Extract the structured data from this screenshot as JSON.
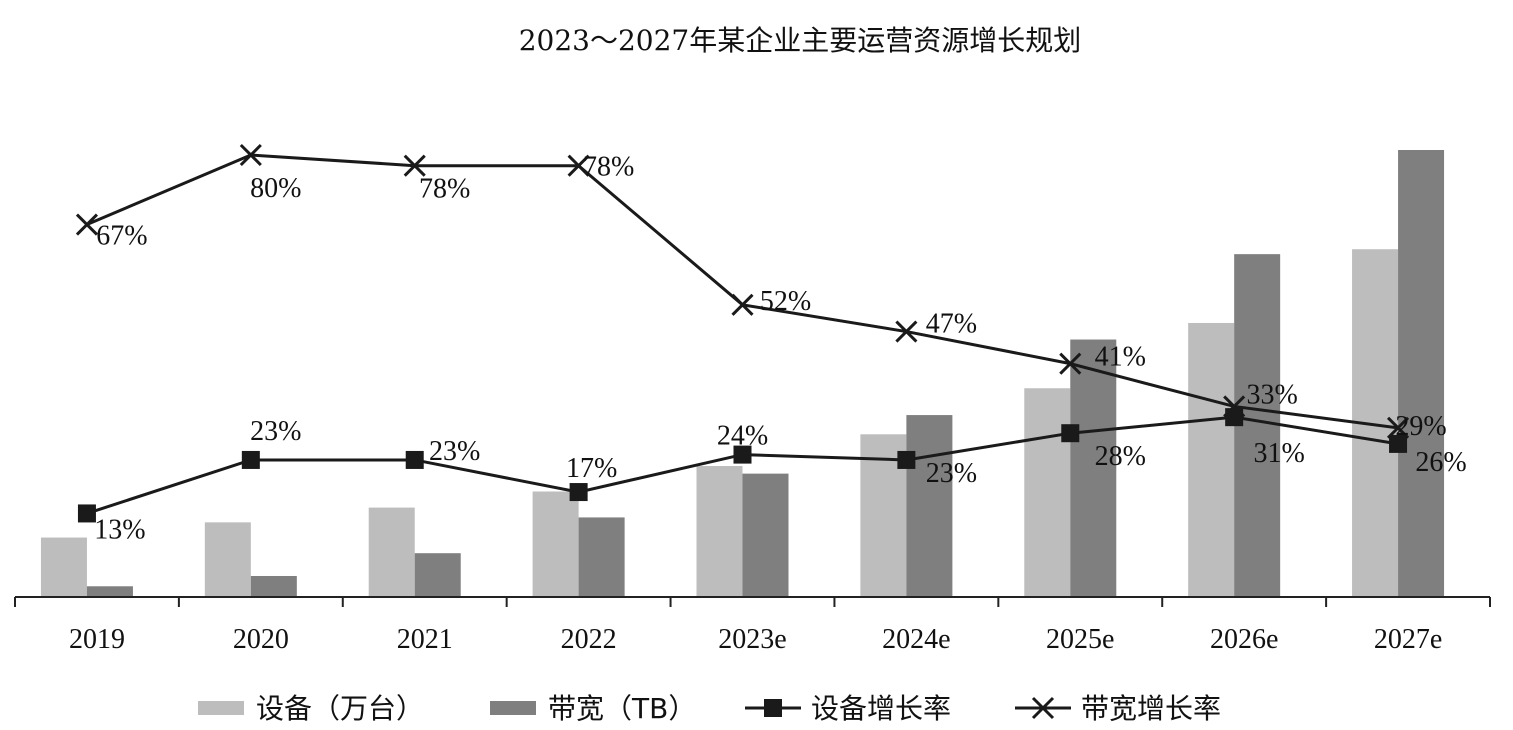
{
  "chart_data": {
    "type": "bar",
    "title": "2023～2027年某企业主要运营资源增长规划",
    "categories": [
      "2019",
      "2020",
      "2021",
      "2022",
      "2023e",
      "2024e",
      "2025e",
      "2026e",
      "2027e"
    ],
    "bar_ylim": [
      0,
      100
    ],
    "line_ylim": [
      0,
      100
    ],
    "series": [
      {
        "name": "设备（万台）",
        "kind": "bar",
        "color": "#bdbdbd",
        "values": [
          13.3,
          16.7,
          20.0,
          23.6,
          29.3,
          36.4,
          46.7,
          61.3,
          77.8
        ]
      },
      {
        "name": "带宽（TB）",
        "kind": "bar",
        "color": "#7f7f7f",
        "values": [
          2.4,
          4.7,
          9.8,
          17.8,
          27.6,
          40.7,
          57.6,
          76.7,
          100.0
        ]
      },
      {
        "name": "设备增长率",
        "kind": "line",
        "marker": "square",
        "color": "#1a1a1a",
        "values": [
          13,
          23,
          23,
          17,
          24,
          23,
          28,
          31,
          26
        ],
        "labels": [
          "13%",
          "23%",
          "23%",
          "17%",
          "24%",
          "23%",
          "28%",
          "31%",
          "26%"
        ]
      },
      {
        "name": "带宽增长率",
        "kind": "line",
        "marker": "x",
        "color": "#1a1a1a",
        "values": [
          67,
          80,
          78,
          78,
          52,
          47,
          41,
          33,
          29
        ],
        "labels": [
          "67%",
          "80%",
          "78%",
          "78%",
          "52%",
          "47%",
          "41%",
          "33%",
          "29%"
        ]
      }
    ],
    "legend_position": "bottom",
    "grid": false
  }
}
